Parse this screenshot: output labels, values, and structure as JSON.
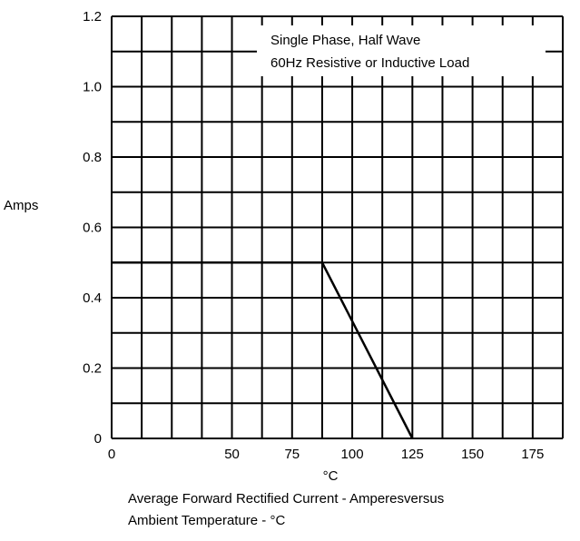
{
  "chart_data": {
    "type": "line",
    "ylabel": "Amps",
    "xlabel": "°C",
    "xlim": [
      0,
      187.5
    ],
    "ylim": [
      0,
      1.2
    ],
    "x_ticks": [
      0,
      50,
      75,
      100,
      125,
      150,
      175
    ],
    "x_tick_labels": [
      "0",
      "50",
      "75",
      "100",
      "125",
      "150",
      "175"
    ],
    "y_ticks": [
      0,
      0.2,
      0.4,
      0.6,
      0.8,
      1.0,
      1.2
    ],
    "y_tick_labels": [
      "0",
      "0.2",
      "0.4",
      "0.6",
      "0.8",
      "1.0",
      "1.2"
    ],
    "x_grid_step": 12.5,
    "y_grid_step": 0.1,
    "grid": true,
    "annotation": [
      "Single Phase, Half Wave",
      "60Hz Resistive or Inductive Load"
    ],
    "caption": [
      "Average Forward Rectified Current - Amperesversus",
      "Ambient Temperature  -  °C"
    ],
    "series": [
      {
        "x": [
          0,
          87.5,
          125
        ],
        "y": [
          0.5,
          0.5,
          0
        ]
      }
    ]
  }
}
